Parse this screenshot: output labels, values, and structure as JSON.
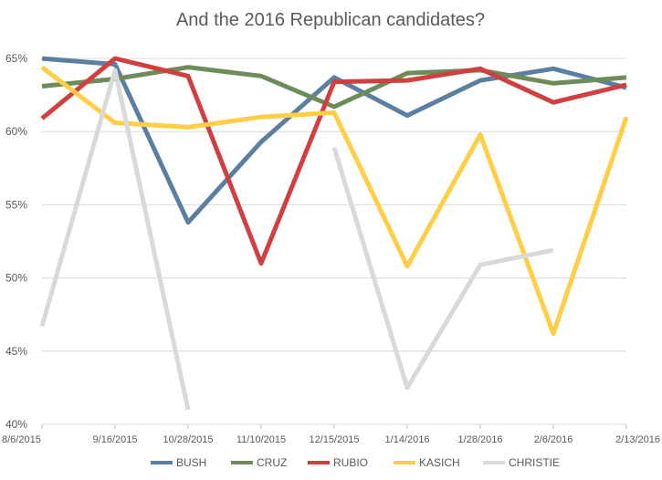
{
  "chart_data": {
    "type": "line",
    "title": "And the 2016 Republican candidates?",
    "xlabel": "",
    "ylabel": "",
    "categories": [
      "8/6/2015",
      "9/16/2015",
      "10/28/2015",
      "11/10/2015",
      "12/15/2015",
      "1/14/2016",
      "1/28/2016",
      "2/6/2016",
      "2/13/2016"
    ],
    "yticks": [
      "40%",
      "45%",
      "50%",
      "55%",
      "60%",
      "65%"
    ],
    "ytick_values": [
      40,
      45,
      50,
      55,
      60,
      65
    ],
    "ylim": [
      40,
      66.5
    ],
    "grid": true,
    "legend_position": "bottom",
    "series": [
      {
        "name": "BUSH",
        "color": "#5B7FA3",
        "values": [
          65.0,
          64.6,
          53.8,
          59.3,
          63.7,
          61.1,
          63.5,
          64.3,
          63.0
        ]
      },
      {
        "name": "CRUZ",
        "color": "#6E8B5A",
        "values": [
          63.1,
          63.6,
          64.4,
          63.8,
          61.7,
          64.0,
          64.2,
          63.3,
          63.7
        ]
      },
      {
        "name": "RUBIO",
        "color": "#D04040",
        "values": [
          60.9,
          65.0,
          63.8,
          51.0,
          63.4,
          63.5,
          64.3,
          62.0,
          63.2
        ]
      },
      {
        "name": "KASICH",
        "color": "#FFCE44",
        "values": [
          64.4,
          60.6,
          60.3,
          61.0,
          61.3,
          50.8,
          59.8,
          46.2,
          61.0
        ]
      },
      {
        "name": "CHRISTIE",
        "color": "#D9D9D9",
        "values": [
          46.7,
          64.2,
          41.0,
          null,
          58.9,
          42.5,
          50.9,
          51.9,
          null
        ]
      }
    ]
  }
}
